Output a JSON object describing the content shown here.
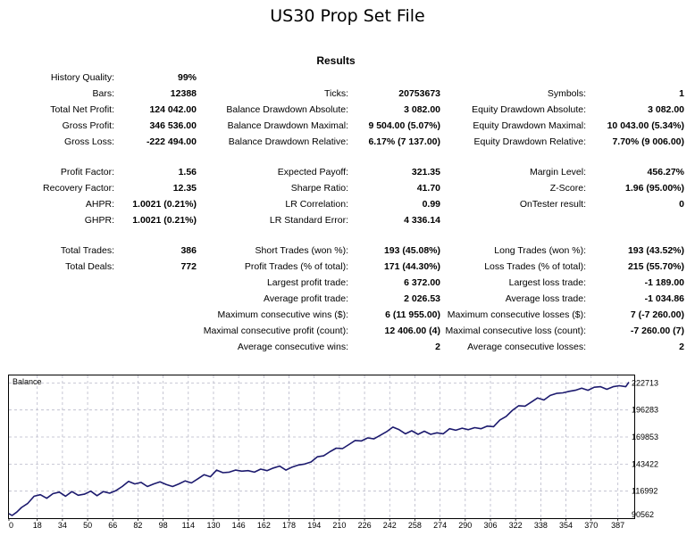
{
  "page_title": "US30 Prop Set File",
  "report": {
    "title": "Results",
    "rows": [
      {
        "top": 81,
        "cells": [
          {
            "c": 1,
            "label": "History Quality:",
            "value": "99%"
          }
        ]
      },
      {
        "top": 99,
        "cells": [
          {
            "c": 1,
            "label": "Bars:",
            "value": "12388"
          },
          {
            "c": 2,
            "label": "Ticks:",
            "value": "20753673"
          },
          {
            "c": 3,
            "label": "Symbols:",
            "value": "1"
          }
        ]
      },
      {
        "top": 117,
        "cells": [
          {
            "c": 1,
            "label": "Total Net Profit:",
            "value": "124 042.00"
          },
          {
            "c": 2,
            "label": "Balance Drawdown Absolute:",
            "value": "3 082.00"
          },
          {
            "c": 3,
            "label": "Equity Drawdown Absolute:",
            "value": "3 082.00"
          }
        ]
      },
      {
        "top": 135,
        "cells": [
          {
            "c": 1,
            "label": "Gross Profit:",
            "value": "346 536.00"
          },
          {
            "c": 2,
            "label": "Balance Drawdown Maximal:",
            "value": "9 504.00 (5.07%)"
          },
          {
            "c": 3,
            "label": "Equity Drawdown Maximal:",
            "value": "10 043.00 (5.34%)"
          }
        ]
      },
      {
        "top": 153,
        "cells": [
          {
            "c": 1,
            "label": "Gross Loss:",
            "value": "-222 494.00"
          },
          {
            "c": 2,
            "label": "Balance Drawdown Relative:",
            "value": "6.17% (7 137.00)"
          },
          {
            "c": 3,
            "label": "Equity Drawdown Relative:",
            "value": "7.70% (9 006.00)"
          }
        ]
      },
      {
        "top": 187,
        "cells": [
          {
            "c": 1,
            "label": "Profit Factor:",
            "value": "1.56"
          },
          {
            "c": 2,
            "label": "Expected Payoff:",
            "value": "321.35"
          },
          {
            "c": 3,
            "label": "Margin Level:",
            "value": "456.27%"
          }
        ]
      },
      {
        "top": 205,
        "cells": [
          {
            "c": 1,
            "label": "Recovery Factor:",
            "value": "12.35"
          },
          {
            "c": 2,
            "label": "Sharpe Ratio:",
            "value": "41.70"
          },
          {
            "c": 3,
            "label": "Z-Score:",
            "value": "1.96 (95.00%)"
          }
        ]
      },
      {
        "top": 223,
        "cells": [
          {
            "c": 1,
            "label": "AHPR:",
            "value": "1.0021 (0.21%)"
          },
          {
            "c": 2,
            "label": "LR Correlation:",
            "value": "0.99"
          },
          {
            "c": 3,
            "label": "OnTester result:",
            "value": "0"
          }
        ]
      },
      {
        "top": 241,
        "cells": [
          {
            "c": 1,
            "label": "GHPR:",
            "value": "1.0021 (0.21%)"
          },
          {
            "c": 2,
            "label": "LR Standard Error:",
            "value": "4 336.14"
          }
        ]
      },
      {
        "top": 275,
        "cells": [
          {
            "c": 1,
            "label": "Total Trades:",
            "value": "386"
          },
          {
            "c": 2,
            "label": "Short Trades (won %):",
            "value": "193 (45.08%)"
          },
          {
            "c": 3,
            "label": "Long Trades (won %):",
            "value": "193 (43.52%)"
          }
        ]
      },
      {
        "top": 293,
        "cells": [
          {
            "c": 1,
            "label": "Total Deals:",
            "value": "772"
          },
          {
            "c": 2,
            "label": "Profit Trades (% of total):",
            "value": "171 (44.30%)"
          },
          {
            "c": 3,
            "label": "Loss Trades (% of total):",
            "value": "215 (55.70%)"
          }
        ]
      },
      {
        "top": 311,
        "cells": [
          {
            "c": 2,
            "label": "Largest profit trade:",
            "value": "6 372.00"
          },
          {
            "c": 3,
            "label": "Largest loss trade:",
            "value": "-1 189.00"
          }
        ]
      },
      {
        "top": 329,
        "cells": [
          {
            "c": 2,
            "label": "Average profit trade:",
            "value": "2 026.53"
          },
          {
            "c": 3,
            "label": "Average loss trade:",
            "value": "-1 034.86"
          }
        ]
      },
      {
        "top": 347,
        "cells": [
          {
            "c": 2,
            "label": "Maximum consecutive wins ($):",
            "value": "6 (11 955.00)"
          },
          {
            "c": 3,
            "label": "Maximum consecutive losses ($):",
            "value": "7 (-7 260.00)"
          }
        ]
      },
      {
        "top": 365,
        "cells": [
          {
            "c": 2,
            "label": "Maximal consecutive profit (count):",
            "value": "12 406.00 (4)"
          },
          {
            "c": 3,
            "label": "Maximal consecutive loss (count):",
            "value": "-7 260.00 (7)"
          }
        ]
      },
      {
        "top": 383,
        "cells": [
          {
            "c": 2,
            "label": "Average consecutive wins:",
            "value": "2"
          },
          {
            "c": 3,
            "label": "Average consecutive losses:",
            "value": "2"
          }
        ]
      }
    ]
  },
  "chart_data": {
    "type": "line",
    "title": "Balance",
    "xlabel": "",
    "ylabel": "",
    "xlim": [
      0,
      394
    ],
    "ylim": [
      90562,
      230000
    ],
    "x_ticks": [
      0,
      18,
      34,
      50,
      66,
      82,
      98,
      114,
      130,
      146,
      162,
      178,
      194,
      210,
      226,
      242,
      258,
      274,
      290,
      306,
      322,
      338,
      354,
      370,
      387
    ],
    "y_ticks": [
      90562,
      116992,
      143422,
      169853,
      196283,
      222713
    ],
    "x_tick_labels": [
      "0",
      "18",
      "34",
      "50",
      "66",
      "82",
      "98",
      "114",
      "130",
      "146",
      "162",
      "178",
      "194",
      "210",
      "226",
      "242",
      "258",
      "274",
      "290",
      "306",
      "322",
      "338",
      "354",
      "370",
      "387"
    ],
    "y_tick_labels": [
      "90562",
      "116992",
      "143422",
      "169853",
      "196283",
      "222713"
    ],
    "grid": true,
    "line_color": "#1c1a6e",
    "series": [
      {
        "name": "Balance",
        "x": [
          0,
          2,
          5,
          8,
          12,
          16,
          20,
          24,
          28,
          32,
          36,
          40,
          44,
          48,
          52,
          56,
          60,
          64,
          68,
          72,
          76,
          80,
          84,
          88,
          92,
          96,
          100,
          104,
          108,
          112,
          116,
          120,
          124,
          128,
          132,
          136,
          140,
          144,
          148,
          152,
          156,
          160,
          164,
          168,
          172,
          176,
          180,
          184,
          188,
          192,
          196,
          200,
          204,
          208,
          212,
          216,
          220,
          224,
          228,
          232,
          236,
          240,
          244,
          248,
          252,
          256,
          260,
          264,
          268,
          272,
          276,
          280,
          284,
          288,
          292,
          296,
          300,
          304,
          308,
          312,
          316,
          320,
          324,
          328,
          332,
          336,
          340,
          344,
          348,
          352,
          356,
          360,
          364,
          368,
          372,
          376,
          380,
          384,
          388,
          392,
          394
        ],
        "values": [
          95000,
          93200,
          96500,
          101000,
          105000,
          112000,
          113500,
          110000,
          114500,
          116000,
          112000,
          116500,
          113000,
          114000,
          117000,
          112500,
          116500,
          115000,
          117500,
          121500,
          126500,
          124000,
          125500,
          121500,
          124000,
          126000,
          123500,
          121500,
          124000,
          127000,
          125000,
          129000,
          133000,
          131000,
          137500,
          135000,
          135500,
          137500,
          136500,
          137000,
          135500,
          138500,
          137000,
          139500,
          141500,
          137500,
          140500,
          142500,
          143500,
          145500,
          150500,
          151500,
          155500,
          159000,
          158500,
          162500,
          166500,
          166000,
          169000,
          168000,
          171500,
          175000,
          179500,
          177000,
          173000,
          176000,
          172500,
          175500,
          172500,
          174000,
          173000,
          178000,
          176500,
          178500,
          177000,
          179000,
          178000,
          180500,
          180000,
          186500,
          190000,
          196000,
          200500,
          200000,
          204000,
          208000,
          206000,
          210500,
          212500,
          213000,
          214500,
          215500,
          217500,
          215500,
          218500,
          219000,
          216500,
          219000,
          220000,
          219000,
          223500
        ]
      }
    ]
  }
}
